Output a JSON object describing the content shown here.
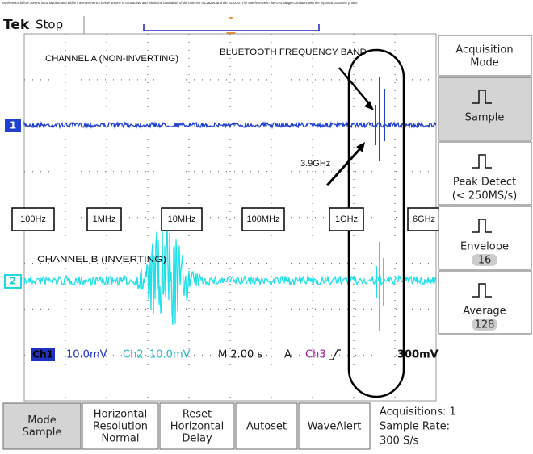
{
  "caption": "Interference below 30MHz is conductive and within the Interference below 30MHz is conductive and within the bandwidth of the both the ISL28291 and the EL5220. The Interference in the GHz range correlates with the reported customer proble",
  "header": {
    "brand": "Tek",
    "state": "Stop"
  },
  "screen": {
    "channel_a_label": "CHANNEL A (NON-INVERTING)",
    "band_label": "BLUETOOTH FREQUENCY BAND",
    "marker_label": "3.9GHz",
    "channel_b_label": "CHANNEL B (INVERTING)",
    "frequency_labels": [
      "100Hz",
      "1MHz",
      "10MHz",
      "100MHz",
      "1GHz",
      "6GHz"
    ],
    "ch1_marker": "1",
    "ch2_marker": "2",
    "status": {
      "ch1": "Ch1",
      "ch1_scale": "10.0mV",
      "ch2": "Ch2",
      "ch2_scale": "10.0mV",
      "timebase": "M 2.00 s",
      "trigger": "A",
      "trigger_source": "Ch3",
      "trigger_level": "300mV"
    }
  },
  "menu": {
    "title": [
      "Acquisition",
      "Mode"
    ],
    "items": [
      {
        "label": "Sample"
      },
      {
        "label": "Peak Detect",
        "sub": "(< 250MS/s)"
      },
      {
        "label": "Envelope",
        "sub": "16"
      },
      {
        "label": "Average",
        "sub": "128"
      }
    ]
  },
  "buttons": [
    [
      "Mode",
      "Sample"
    ],
    [
      "Horizontal",
      "Resolution",
      "Normal"
    ],
    [
      "Reset",
      "Horizontal",
      "Delay"
    ],
    [
      "Autoset"
    ],
    [
      "WaveAlert"
    ]
  ],
  "info": [
    "Acquisitions: 1",
    "Sample Rate:",
    "300 S/s"
  ]
}
